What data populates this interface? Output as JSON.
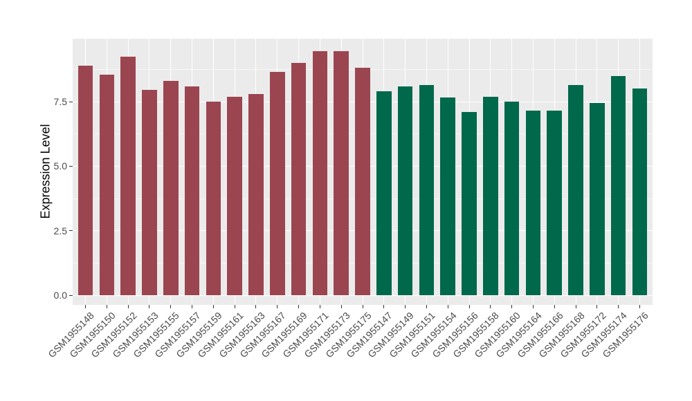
{
  "figure": {
    "background": "#FFFFFF",
    "panel_background": "#EBEBEB",
    "gridline_color": "#FFFFFF",
    "axis_text_color": "#4A4A4A",
    "axis_title_color": "#000000",
    "tick_mark_color": "#333333"
  },
  "chart_data": {
    "type": "bar",
    "title": "",
    "xlabel": "",
    "ylabel": "Expression Level",
    "ylim": [
      -0.4,
      9.95
    ],
    "yticks": [
      0,
      2.5,
      5,
      7.5
    ],
    "ytick_labels": [
      "0.0",
      "2.5",
      "5.0",
      "7.5"
    ],
    "yticks_minor": [
      1.25,
      3.75,
      6.25,
      8.75
    ],
    "grid": "white major and minor horizontal lines plus one vertical line per category on grey panel",
    "legend": "none",
    "x_label_rotation_deg": 45,
    "bar_width_fraction": 0.7,
    "groups": [
      {
        "name": "left-group-maroon",
        "color": "#9B4551"
      },
      {
        "name": "right-group-green",
        "color": "#00684B"
      }
    ],
    "bars": [
      {
        "label": "GSM1955148",
        "value": 8.9,
        "group": 0
      },
      {
        "label": "GSM1955150",
        "value": 8.55,
        "group": 0
      },
      {
        "label": "GSM1955152",
        "value": 9.25,
        "group": 0
      },
      {
        "label": "GSM1955153",
        "value": 7.95,
        "group": 0
      },
      {
        "label": "GSM1955155",
        "value": 8.3,
        "group": 0
      },
      {
        "label": "GSM1955157",
        "value": 8.1,
        "group": 0
      },
      {
        "label": "GSM1955159",
        "value": 7.5,
        "group": 0
      },
      {
        "label": "GSM1955161",
        "value": 7.7,
        "group": 0
      },
      {
        "label": "GSM1955163",
        "value": 7.8,
        "group": 0
      },
      {
        "label": "GSM1955167",
        "value": 8.65,
        "group": 0
      },
      {
        "label": "GSM1955169",
        "value": 9.0,
        "group": 0
      },
      {
        "label": "GSM1955171",
        "value": 9.45,
        "group": 0
      },
      {
        "label": "GSM1955173",
        "value": 9.45,
        "group": 0
      },
      {
        "label": "GSM1955175",
        "value": 8.8,
        "group": 0
      },
      {
        "label": "GSM1955147",
        "value": 7.9,
        "group": 1
      },
      {
        "label": "GSM1955149",
        "value": 8.1,
        "group": 1
      },
      {
        "label": "GSM1955151",
        "value": 8.15,
        "group": 1
      },
      {
        "label": "GSM1955154",
        "value": 7.65,
        "group": 1
      },
      {
        "label": "GSM1955156",
        "value": 7.1,
        "group": 1
      },
      {
        "label": "GSM1955158",
        "value": 7.7,
        "group": 1
      },
      {
        "label": "GSM1955160",
        "value": 7.5,
        "group": 1
      },
      {
        "label": "GSM1955164",
        "value": 7.15,
        "group": 1
      },
      {
        "label": "GSM1955166",
        "value": 7.15,
        "group": 1
      },
      {
        "label": "GSM1955168",
        "value": 8.15,
        "group": 1
      },
      {
        "label": "GSM1955172",
        "value": 7.45,
        "group": 1
      },
      {
        "label": "GSM1955174",
        "value": 8.5,
        "group": 1
      },
      {
        "label": "GSM1955176",
        "value": 8.0,
        "group": 1
      }
    ]
  }
}
